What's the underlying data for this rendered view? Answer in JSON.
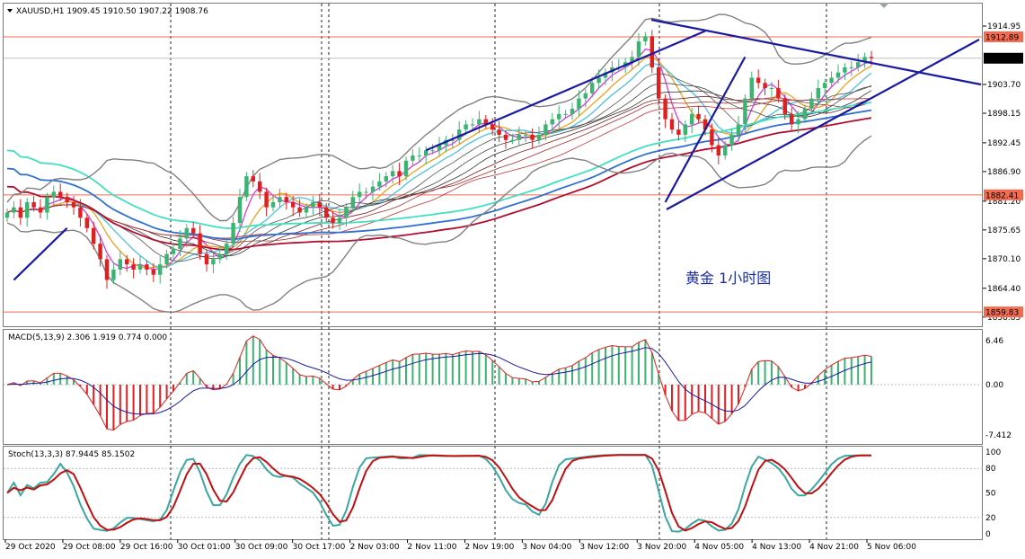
{
  "chart_data": {
    "type": "candlestick",
    "main_header": "XAUUSD,H1  1909.45 1910.50 1907.22 1908.76",
    "annotation": "黄金  1小时图",
    "price_axis_ticks": [
      "1914.95",
      "1903.70",
      "1898.15",
      "1892.45",
      "1886.90",
      "1881.20",
      "1875.65",
      "1870.10",
      "1864.40",
      "1858.85"
    ],
    "price_range": [
      1857.6,
      1918.6
    ],
    "price_tags": [
      {
        "value": 1912.89,
        "label": "1912.89",
        "color": "#f26a4f"
      },
      {
        "value": 1908.76,
        "label": "1908.76",
        "color": "#000000"
      },
      {
        "value": 1882.41,
        "label": "1882.41",
        "color": "#f26a4f"
      },
      {
        "value": 1859.83,
        "label": "1859.83",
        "color": "#f26a4f"
      }
    ],
    "x_labels": [
      "29 Oct 2020",
      "29 Oct 08:00",
      "29 Oct 16:00",
      "30 Oct 01:00",
      "30 Oct 09:00",
      "30 Oct 17:00",
      "2 Nov 03:00",
      "2 Nov 11:00",
      "2 Nov 19:00",
      "3 Nov 04:00",
      "3 Nov 12:00",
      "3 Nov 20:00",
      "4 Nov 05:00",
      "4 Nov 13:00",
      "4 Nov 21:00",
      "5 Nov 06:00"
    ],
    "closes": [
      1879,
      1880,
      1878,
      1881,
      1880,
      1879,
      1882,
      1883,
      1882,
      1881,
      1880,
      1878,
      1876,
      1873,
      1870,
      1866,
      1868,
      1870,
      1869,
      1868,
      1869,
      1868,
      1867,
      1869,
      1871,
      1872,
      1874,
      1876,
      1875,
      1871,
      1869,
      1870,
      1871,
      1873,
      1877,
      1882,
      1886,
      1885,
      1883,
      1880,
      1881,
      1882,
      1881,
      1880,
      1879,
      1880,
      1881,
      1880,
      1878,
      1877,
      1878,
      1880,
      1882,
      1883,
      1883,
      1884,
      1885,
      1886,
      1887,
      1886,
      1889,
      1890,
      1890,
      1891,
      1891,
      1892,
      1893,
      1893,
      1895,
      1896,
      1896,
      1897,
      1896,
      1895,
      1894,
      1893,
      1893,
      1894,
      1894,
      1893,
      1894,
      1896,
      1897,
      1898,
      1898,
      1899,
      1901,
      1902,
      1904,
      1905,
      1906,
      1907,
      1907,
      1908,
      1909,
      1912,
      1913,
      1907,
      1901,
      1897,
      1895,
      1894,
      1896,
      1898,
      1897,
      1895,
      1892,
      1890,
      1892,
      1894,
      1896,
      1901,
      1905,
      1904,
      1903,
      1903,
      1901,
      1898,
      1896,
      1897,
      1899,
      1901,
      1903,
      1904,
      1905,
      1906,
      1907,
      1907,
      1908,
      1909,
      1908.76
    ],
    "trendlines": [
      {
        "from": [
          1,
          1866
        ],
        "to": [
          9,
          1876
        ]
      },
      {
        "from": [
          63,
          1891
        ],
        "to": [
          105,
          1914
        ]
      },
      {
        "from": [
          99,
          1881
        ],
        "to": [
          111,
          1909
        ]
      }
    ],
    "macd": {
      "header": "MACD(5,13,9)  2.306 1.919 0.774 0.000",
      "ticks": [
        "6.46",
        "0.00",
        "-7.412"
      ],
      "range": [
        -8.2,
        7.4
      ]
    },
    "stoch": {
      "header": "Stoch(13,3,3)  87.9445 85.1502",
      "ticks": [
        "100",
        "80",
        "50",
        "20",
        "0"
      ],
      "levels": [
        80,
        20
      ],
      "range": [
        0,
        100
      ]
    }
  }
}
